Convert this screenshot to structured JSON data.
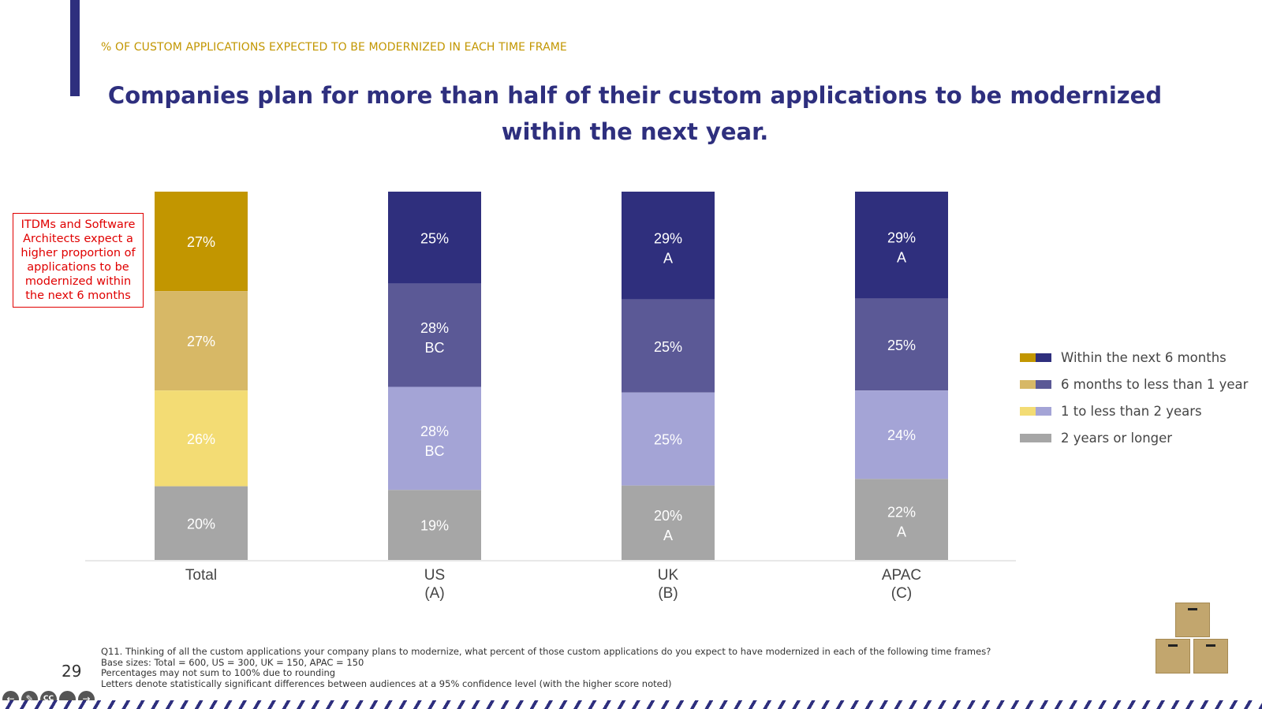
{
  "header": {
    "subtitle": "% OF CUSTOM APPLICATIONS EXPECTED TO BE MODERNIZED IN EACH TIME FRAME",
    "title": "Companies plan for more than half of their custom applications to be modernized within the next year."
  },
  "callout": {
    "text": "ITDMs and Software Architects expect a higher proportion of applications to be modernized within the next 6 months"
  },
  "chart_data": {
    "type": "bar",
    "stacked": true,
    "categories": [
      "Total",
      "US\n(A)",
      "UK\n(B)",
      "APAC\n(C)"
    ],
    "series": [
      {
        "name": "Within the next 6 months",
        "values": [
          27,
          25,
          29,
          29
        ],
        "annotations": [
          "",
          "",
          "A",
          "A"
        ],
        "colors": [
          "#c29600",
          "#2f2f7d",
          "#2f2f7d",
          "#2f2f7d"
        ]
      },
      {
        "name": "6 months to less than 1 year",
        "values": [
          27,
          28,
          25,
          25
        ],
        "annotations": [
          "",
          "BC",
          "",
          ""
        ],
        "colors": [
          "#d7b866",
          "#5b5996",
          "#5b5996",
          "#5b5996"
        ]
      },
      {
        "name": "1 to less than 2 years",
        "values": [
          26,
          28,
          25,
          24
        ],
        "annotations": [
          "",
          "BC",
          "",
          ""
        ],
        "colors": [
          "#f3dc74",
          "#a4a4d6",
          "#a4a4d6",
          "#a4a4d6"
        ]
      },
      {
        "name": "2 years or longer",
        "values": [
          20,
          19,
          20,
          22
        ],
        "annotations": [
          "",
          "",
          "A",
          "A"
        ],
        "colors": [
          "#a6a6a6",
          "#a6a6a6",
          "#a6a6a6",
          "#a6a6a6"
        ]
      }
    ],
    "legend": [
      {
        "label": "Within the next 6 months",
        "colors": [
          "#c29600",
          "#2f2f7d"
        ]
      },
      {
        "label": "6 months to less than 1 year",
        "colors": [
          "#d7b866",
          "#5b5996"
        ]
      },
      {
        "label": "1 to less than 2 years",
        "colors": [
          "#f3dc74",
          "#a4a4d6"
        ]
      },
      {
        "label": "2 years or longer",
        "colors": [
          "#a6a6a6",
          "#a6a6a6"
        ]
      }
    ],
    "legend_position": "right",
    "value_suffix": "%",
    "grid": false
  },
  "footnotes": [
    "Q11. Thinking of all the custom applications your company plans to modernize, what percent of those custom applications do you expect to have modernized in each of the following time frames?",
    "Base sizes: Total = 600, US = 300, UK = 150, APAC = 150",
    "Percentages may not sum to 100% due to rounding",
    "Letters denote statistically significant differences between audiences at a 95% confidence level (with the higher score noted)"
  ],
  "page_number": "29",
  "nav": {
    "prev": "back-icon",
    "pen": "pen-icon",
    "captions": "CC",
    "more": "more-icon",
    "next": "forward-icon"
  }
}
